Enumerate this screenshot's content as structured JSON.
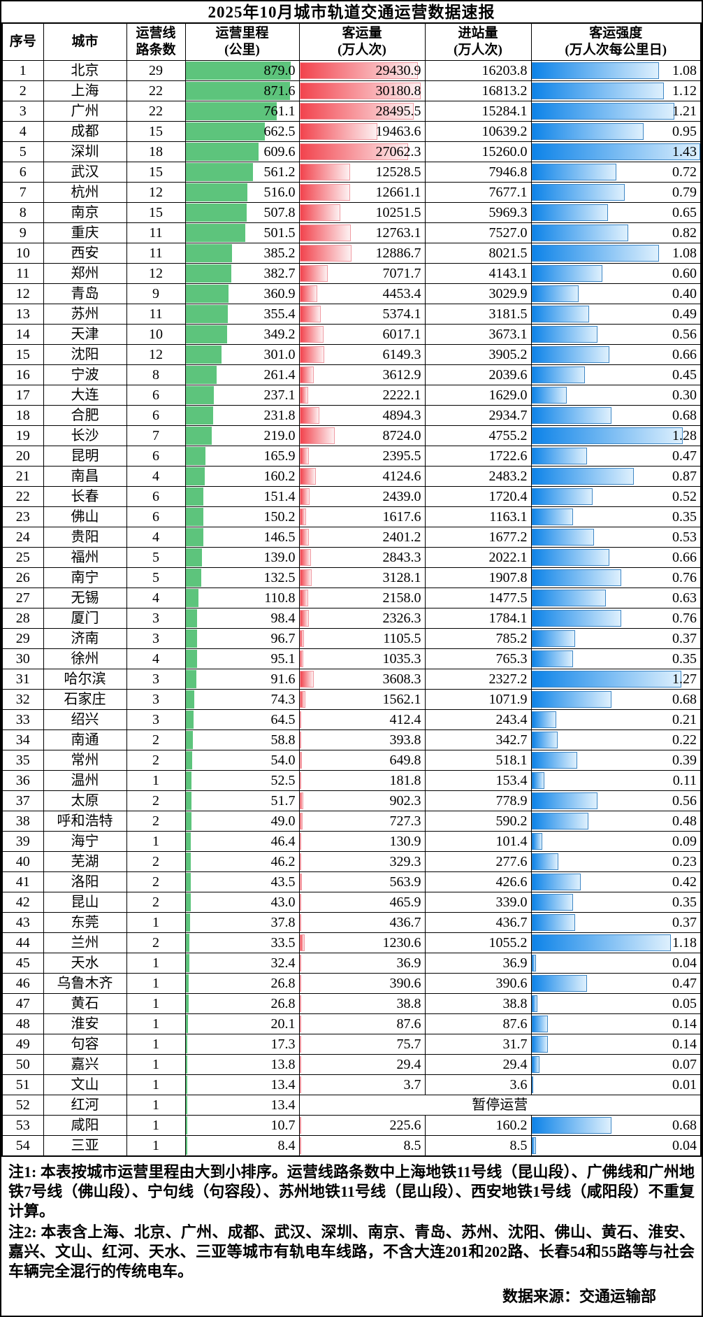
{
  "title": "2025年10月城市轨道交通运营数据速报",
  "header": {
    "seq": "序号",
    "city": "城市",
    "lines1": "运营线",
    "lines2": "路条数",
    "mileage1": "运营里程",
    "mileage2": "(公里)",
    "volume1": "客运量",
    "volume2": "(万人次)",
    "entries1": "进站量",
    "entries2": "(万人次)",
    "intensity1": "客运强度",
    "intensity2": "(万人次每公里日)"
  },
  "suspended_label": "暂停运营",
  "colors": {
    "mileage_bar": "#5dc47c",
    "volume_bar_start": "#f2434d",
    "volume_bar_end": "#fdf1f2",
    "volume_bar_border": "#f09aa2",
    "intensity_bar_start": "#0d83e8",
    "intensity_bar_end": "#def0fd",
    "intensity_bar_border": "#3f87c5"
  },
  "notes": {
    "note1": "注1: 本表按城市运营里程由大到小排序。运营线路条数中上海地铁11号线（昆山段）、广佛线和广州地铁7号线（佛山段）、宁句线（句容段）、苏州地铁11号线（昆山段）、西安地铁1号线（咸阳段）不重复计算。",
    "note2": "注2: 本表含上海、北京、广州、成都、武汉、深圳、南京、青岛、苏州、沈阳、佛山、黄石、淮安、嘉兴、文山、红河、天水、三亚等城市有轨电车线路，不含大连201和202路、长春54和55路等与社会车辆完全混行的传统电车。",
    "source": "数据来源：交通运输部"
  },
  "chart_data": {
    "type": "table",
    "title": "2025年10月城市轨道交通运营数据速报",
    "columns": [
      "序号",
      "城市",
      "运营线路条数",
      "运营里程(公里)",
      "客运量(万人次)",
      "进站量(万人次)",
      "客运强度(万人次每公里日)"
    ],
    "bar_scales": {
      "mileage_max": 879.0,
      "mileage_max_pct": 93,
      "volume_max": 30180.8,
      "volume_max_pct": 97,
      "intensity_max": 1.43,
      "intensity_max_pct": 100
    },
    "rows": [
      {
        "seq": "1",
        "city": "北京",
        "lines": "29",
        "mileage": "879.0",
        "volume": "29430.9",
        "entries": "16203.8",
        "intensity": "1.08"
      },
      {
        "seq": "2",
        "city": "上海",
        "lines": "22",
        "mileage": "871.6",
        "volume": "30180.8",
        "entries": "16813.2",
        "intensity": "1.12"
      },
      {
        "seq": "3",
        "city": "广州",
        "lines": "22",
        "mileage": "761.1",
        "volume": "28495.5",
        "entries": "15284.1",
        "intensity": "1.21"
      },
      {
        "seq": "4",
        "city": "成都",
        "lines": "15",
        "mileage": "662.5",
        "volume": "19463.6",
        "entries": "10639.2",
        "intensity": "0.95"
      },
      {
        "seq": "5",
        "city": "深圳",
        "lines": "18",
        "mileage": "609.6",
        "volume": "27062.3",
        "entries": "15260.0",
        "intensity": "1.43"
      },
      {
        "seq": "6",
        "city": "武汉",
        "lines": "15",
        "mileage": "561.2",
        "volume": "12528.5",
        "entries": "7946.8",
        "intensity": "0.72"
      },
      {
        "seq": "7",
        "city": "杭州",
        "lines": "12",
        "mileage": "516.0",
        "volume": "12661.1",
        "entries": "7677.1",
        "intensity": "0.79"
      },
      {
        "seq": "8",
        "city": "南京",
        "lines": "15",
        "mileage": "507.8",
        "volume": "10251.5",
        "entries": "5969.3",
        "intensity": "0.65"
      },
      {
        "seq": "9",
        "city": "重庆",
        "lines": "11",
        "mileage": "501.5",
        "volume": "12763.1",
        "entries": "7527.0",
        "intensity": "0.82"
      },
      {
        "seq": "10",
        "city": "西安",
        "lines": "11",
        "mileage": "385.2",
        "volume": "12886.7",
        "entries": "8021.5",
        "intensity": "1.08"
      },
      {
        "seq": "11",
        "city": "郑州",
        "lines": "12",
        "mileage": "382.7",
        "volume": "7071.7",
        "entries": "4143.1",
        "intensity": "0.60"
      },
      {
        "seq": "12",
        "city": "青岛",
        "lines": "9",
        "mileage": "360.9",
        "volume": "4453.4",
        "entries": "3029.9",
        "intensity": "0.40"
      },
      {
        "seq": "13",
        "city": "苏州",
        "lines": "11",
        "mileage": "355.4",
        "volume": "5374.1",
        "entries": "3181.5",
        "intensity": "0.49"
      },
      {
        "seq": "14",
        "city": "天津",
        "lines": "10",
        "mileage": "349.2",
        "volume": "6017.1",
        "entries": "3673.1",
        "intensity": "0.56"
      },
      {
        "seq": "15",
        "city": "沈阳",
        "lines": "12",
        "mileage": "301.0",
        "volume": "6149.3",
        "entries": "3905.2",
        "intensity": "0.66"
      },
      {
        "seq": "16",
        "city": "宁波",
        "lines": "8",
        "mileage": "261.4",
        "volume": "3612.9",
        "entries": "2039.6",
        "intensity": "0.45"
      },
      {
        "seq": "17",
        "city": "大连",
        "lines": "6",
        "mileage": "237.1",
        "volume": "2222.1",
        "entries": "1629.0",
        "intensity": "0.30"
      },
      {
        "seq": "18",
        "city": "合肥",
        "lines": "6",
        "mileage": "231.8",
        "volume": "4894.3",
        "entries": "2934.7",
        "intensity": "0.68"
      },
      {
        "seq": "19",
        "city": "长沙",
        "lines": "7",
        "mileage": "219.0",
        "volume": "8724.0",
        "entries": "4755.2",
        "intensity": "1.28"
      },
      {
        "seq": "20",
        "city": "昆明",
        "lines": "6",
        "mileage": "165.9",
        "volume": "2395.5",
        "entries": "1722.6",
        "intensity": "0.47"
      },
      {
        "seq": "21",
        "city": "南昌",
        "lines": "4",
        "mileage": "160.2",
        "volume": "4124.6",
        "entries": "2483.2",
        "intensity": "0.87"
      },
      {
        "seq": "22",
        "city": "长春",
        "lines": "6",
        "mileage": "151.4",
        "volume": "2439.0",
        "entries": "1720.4",
        "intensity": "0.52"
      },
      {
        "seq": "23",
        "city": "佛山",
        "lines": "6",
        "mileage": "150.2",
        "volume": "1617.6",
        "entries": "1163.1",
        "intensity": "0.35"
      },
      {
        "seq": "24",
        "city": "贵阳",
        "lines": "4",
        "mileage": "146.5",
        "volume": "2401.2",
        "entries": "1677.2",
        "intensity": "0.53"
      },
      {
        "seq": "25",
        "city": "福州",
        "lines": "5",
        "mileage": "139.0",
        "volume": "2843.3",
        "entries": "2022.1",
        "intensity": "0.66"
      },
      {
        "seq": "26",
        "city": "南宁",
        "lines": "5",
        "mileage": "132.5",
        "volume": "3128.1",
        "entries": "1907.8",
        "intensity": "0.76"
      },
      {
        "seq": "27",
        "city": "无锡",
        "lines": "4",
        "mileage": "110.8",
        "volume": "2158.0",
        "entries": "1477.5",
        "intensity": "0.63"
      },
      {
        "seq": "28",
        "city": "厦门",
        "lines": "3",
        "mileage": "98.4",
        "volume": "2326.3",
        "entries": "1784.1",
        "intensity": "0.76"
      },
      {
        "seq": "29",
        "city": "济南",
        "lines": "3",
        "mileage": "96.7",
        "volume": "1105.5",
        "entries": "785.2",
        "intensity": "0.37"
      },
      {
        "seq": "30",
        "city": "徐州",
        "lines": "4",
        "mileage": "95.1",
        "volume": "1035.3",
        "entries": "765.3",
        "intensity": "0.35"
      },
      {
        "seq": "31",
        "city": "哈尔滨",
        "lines": "3",
        "mileage": "91.6",
        "volume": "3608.3",
        "entries": "2327.2",
        "intensity": "1.27"
      },
      {
        "seq": "32",
        "city": "石家庄",
        "lines": "3",
        "mileage": "74.3",
        "volume": "1562.1",
        "entries": "1071.9",
        "intensity": "0.68"
      },
      {
        "seq": "33",
        "city": "绍兴",
        "lines": "3",
        "mileage": "64.5",
        "volume": "412.4",
        "entries": "243.4",
        "intensity": "0.21"
      },
      {
        "seq": "34",
        "city": "南通",
        "lines": "2",
        "mileage": "58.8",
        "volume": "393.8",
        "entries": "342.7",
        "intensity": "0.22"
      },
      {
        "seq": "35",
        "city": "常州",
        "lines": "2",
        "mileage": "54.0",
        "volume": "649.8",
        "entries": "518.1",
        "intensity": "0.39"
      },
      {
        "seq": "36",
        "city": "温州",
        "lines": "1",
        "mileage": "52.5",
        "volume": "181.8",
        "entries": "153.4",
        "intensity": "0.11"
      },
      {
        "seq": "37",
        "city": "太原",
        "lines": "2",
        "mileage": "51.7",
        "volume": "902.3",
        "entries": "778.9",
        "intensity": "0.56"
      },
      {
        "seq": "38",
        "city": "呼和浩特",
        "lines": "2",
        "mileage": "49.0",
        "volume": "727.3",
        "entries": "590.2",
        "intensity": "0.48"
      },
      {
        "seq": "39",
        "city": "海宁",
        "lines": "1",
        "mileage": "46.4",
        "volume": "130.9",
        "entries": "101.4",
        "intensity": "0.09"
      },
      {
        "seq": "40",
        "city": "芜湖",
        "lines": "2",
        "mileage": "46.2",
        "volume": "329.3",
        "entries": "277.6",
        "intensity": "0.23"
      },
      {
        "seq": "41",
        "city": "洛阳",
        "lines": "2",
        "mileage": "43.5",
        "volume": "563.9",
        "entries": "426.6",
        "intensity": "0.42"
      },
      {
        "seq": "42",
        "city": "昆山",
        "lines": "2",
        "mileage": "43.0",
        "volume": "465.9",
        "entries": "339.0",
        "intensity": "0.35"
      },
      {
        "seq": "43",
        "city": "东莞",
        "lines": "1",
        "mileage": "37.8",
        "volume": "436.7",
        "entries": "436.7",
        "intensity": "0.37"
      },
      {
        "seq": "44",
        "city": "兰州",
        "lines": "2",
        "mileage": "33.5",
        "volume": "1230.6",
        "entries": "1055.2",
        "intensity": "1.18"
      },
      {
        "seq": "45",
        "city": "天水",
        "lines": "1",
        "mileage": "32.4",
        "volume": "36.9",
        "entries": "36.9",
        "intensity": "0.04"
      },
      {
        "seq": "46",
        "city": "乌鲁木齐",
        "lines": "1",
        "mileage": "26.8",
        "volume": "390.6",
        "entries": "390.6",
        "intensity": "0.47"
      },
      {
        "seq": "47",
        "city": "黄石",
        "lines": "1",
        "mileage": "26.8",
        "volume": "38.8",
        "entries": "38.8",
        "intensity": "0.05"
      },
      {
        "seq": "48",
        "city": "淮安",
        "lines": "1",
        "mileage": "20.1",
        "volume": "87.6",
        "entries": "87.6",
        "intensity": "0.14"
      },
      {
        "seq": "49",
        "city": "句容",
        "lines": "1",
        "mileage": "17.3",
        "volume": "75.7",
        "entries": "31.7",
        "intensity": "0.14"
      },
      {
        "seq": "50",
        "city": "嘉兴",
        "lines": "1",
        "mileage": "13.8",
        "volume": "29.4",
        "entries": "29.4",
        "intensity": "0.07"
      },
      {
        "seq": "51",
        "city": "文山",
        "lines": "1",
        "mileage": "13.4",
        "volume": "3.7",
        "entries": "3.6",
        "intensity": "0.01"
      },
      {
        "seq": "52",
        "city": "红河",
        "lines": "1",
        "mileage": "13.4",
        "suspended": true
      },
      {
        "seq": "53",
        "city": "咸阳",
        "lines": "1",
        "mileage": "10.7",
        "volume": "225.6",
        "entries": "160.2",
        "intensity": "0.68"
      },
      {
        "seq": "54",
        "city": "三亚",
        "lines": "1",
        "mileage": "8.4",
        "volume": "8.5",
        "entries": "8.5",
        "intensity": "0.04"
      }
    ]
  }
}
